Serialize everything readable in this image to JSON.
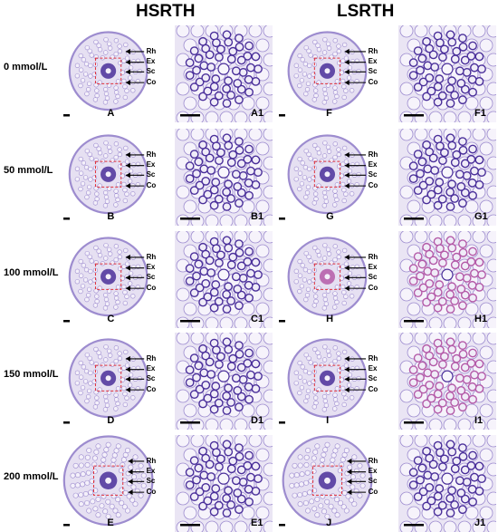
{
  "groups": [
    "HSRTH",
    "LSRTH"
  ],
  "rows": [
    {
      "label": "0 mmol/L",
      "panels": [
        "A",
        "A1",
        "F",
        "F1"
      ]
    },
    {
      "label": "50 mmol/L",
      "panels": [
        "B",
        "B1",
        "G",
        "G1"
      ]
    },
    {
      "label": "100 mmol/L",
      "panels": [
        "C",
        "C1",
        "H",
        "H1"
      ]
    },
    {
      "label": "150 mmol/L",
      "panels": [
        "D",
        "D1",
        "I",
        "I1"
      ]
    },
    {
      "label": "200 mmol/L",
      "panels": [
        "E",
        "E1",
        "J",
        "J1"
      ]
    }
  ],
  "tissue_labels": [
    "Rh",
    "Ex",
    "Sc",
    "Co"
  ],
  "colors": {
    "stain_light": "#e6e0f2",
    "stain_mid": "#9d8ccf",
    "stain_dark": "#4a2f9a",
    "pink_stele": "#b45aa8",
    "roi_box": "#e0303a"
  }
}
